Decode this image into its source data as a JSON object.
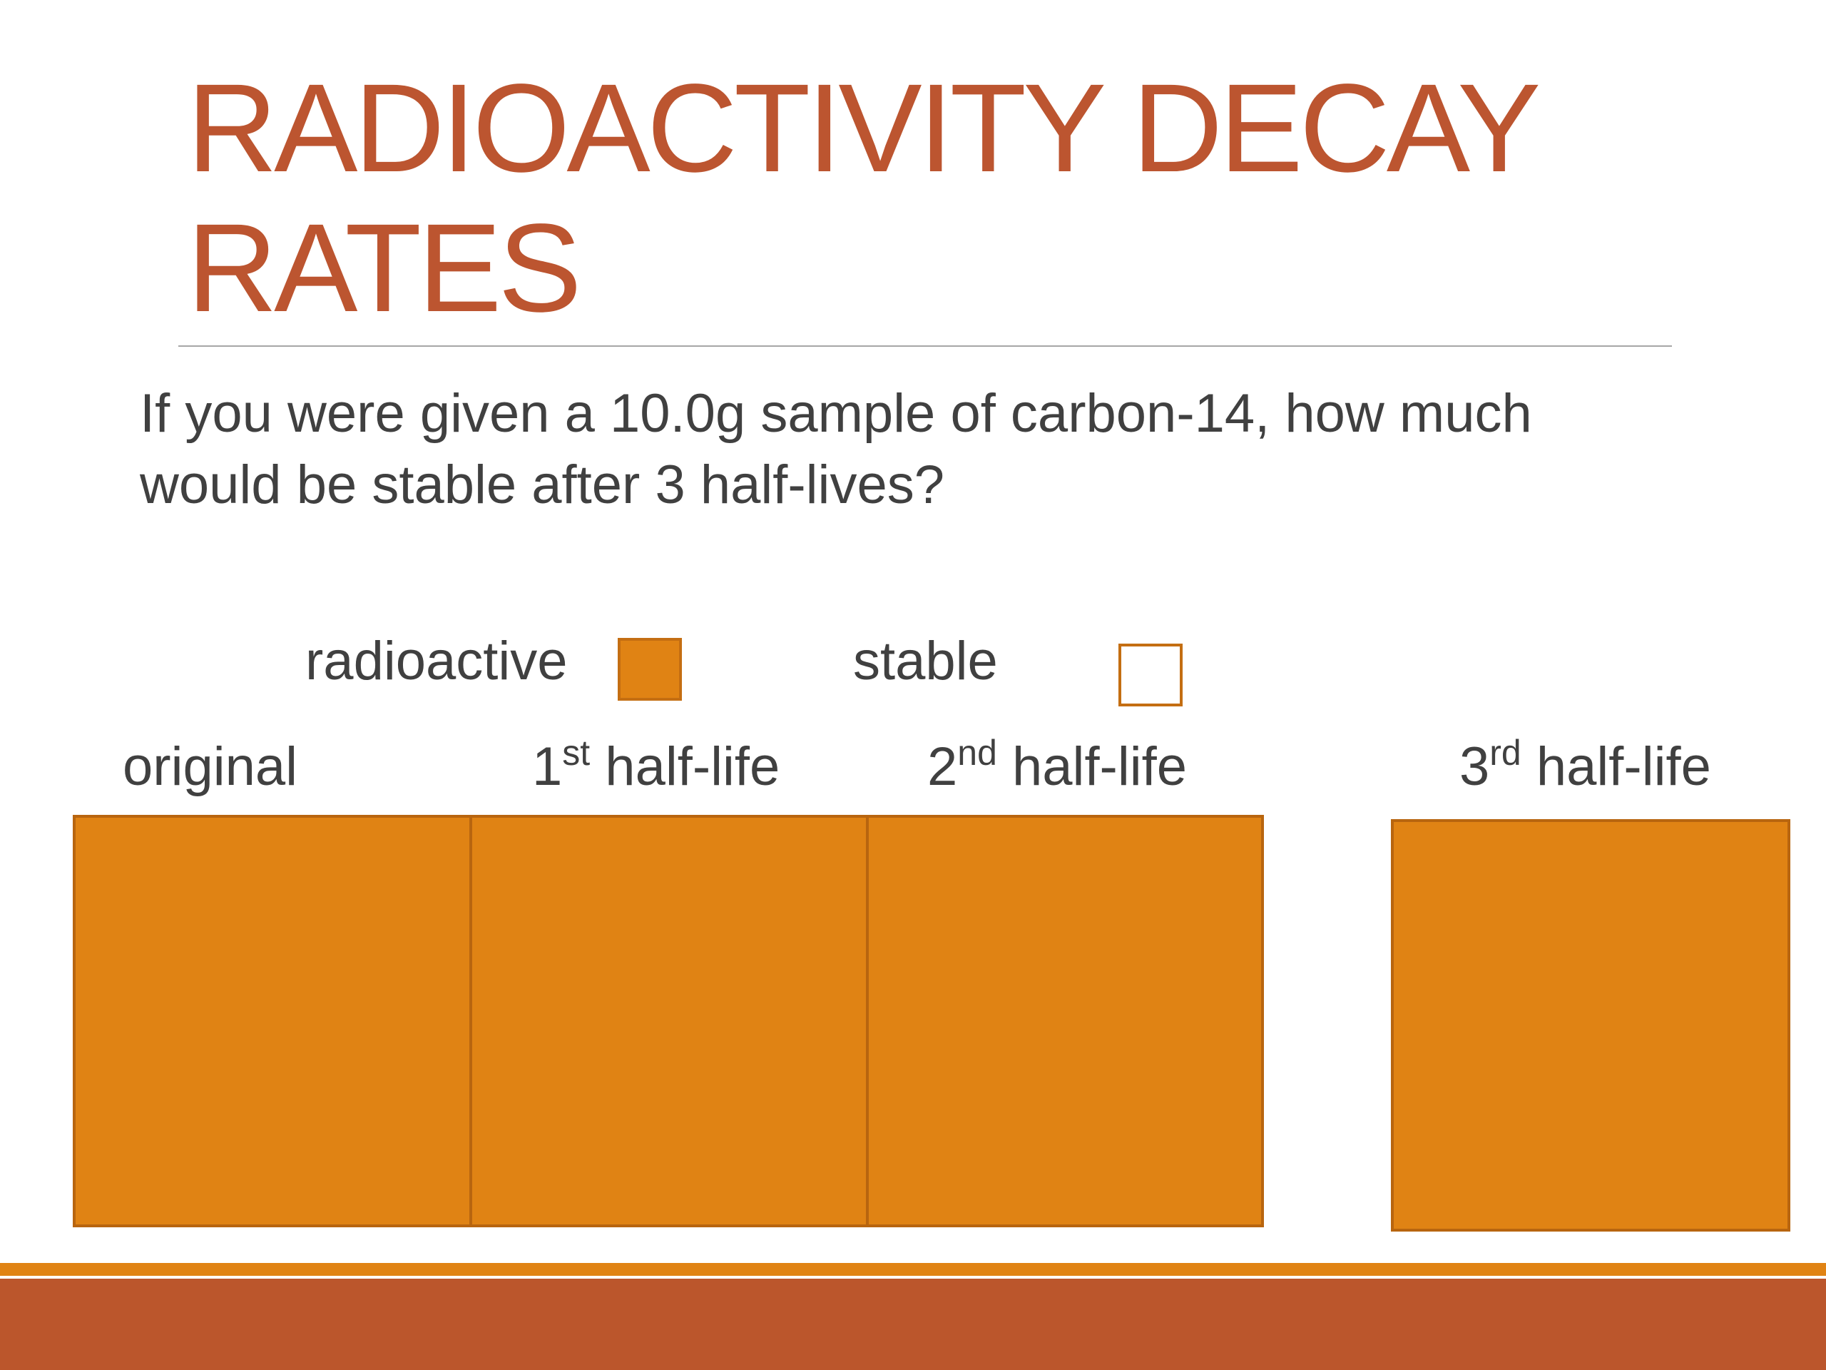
{
  "slide": {
    "title_line1": "RADIOACTIVITY DECAY",
    "title_line2": "RATES",
    "question_line1": "If you were given a 10.0g sample of carbon-14, how much",
    "question_line2": "would be stable after 3 half-lives?"
  },
  "legend": {
    "radioactive_label": "radioactive",
    "stable_label": "stable"
  },
  "stages": {
    "original": {
      "label": "original"
    },
    "first": {
      "number": "1",
      "suffix": "st",
      "text": " half-life"
    },
    "second": {
      "number": "2",
      "suffix": "nd",
      "text": " half-life"
    },
    "third": {
      "number": "3",
      "suffix": "rd",
      "text": " half-life"
    }
  },
  "colors": {
    "title": "#bc5530",
    "radioactive_fill": "#e08314",
    "footer_accent": "#e08314",
    "footer_bar": "#bb562c",
    "body_text": "#404040"
  }
}
